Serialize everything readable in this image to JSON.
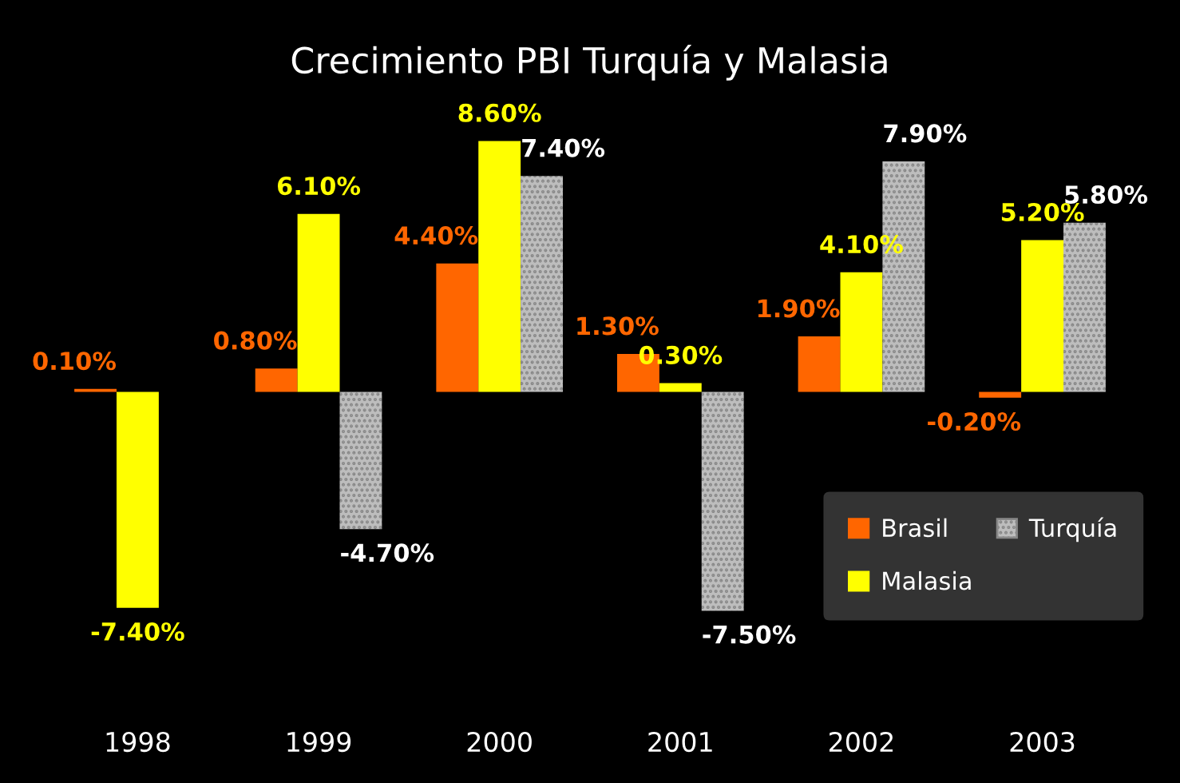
{
  "chart_data": {
    "type": "bar",
    "title": "Crecimiento PBI Turquía y Malasia",
    "categories": [
      "1998",
      "1999",
      "2000",
      "2001",
      "2002",
      "2003"
    ],
    "series": [
      {
        "name": "Brasil",
        "color": "#ff6600",
        "values": [
          0.1,
          0.8,
          4.4,
          1.3,
          1.9,
          -0.2
        ],
        "value_labels": [
          "0.10%",
          "0.80%",
          "4.40%",
          "1.30%",
          "1.90%",
          "-0.20%"
        ]
      },
      {
        "name": "Malasia",
        "color": "#ffff00",
        "values": [
          -7.4,
          6.1,
          8.6,
          0.3,
          4.1,
          5.2
        ],
        "value_labels": [
          "-7.40%",
          "6.10%",
          "8.60%",
          "0.30%",
          "4.10%",
          "5.20%"
        ]
      },
      {
        "name": "Turquía",
        "color": "#bdbdbd",
        "values": [
          null,
          -4.7,
          7.4,
          -7.5,
          7.9,
          5.8
        ],
        "value_labels": [
          null,
          "-4.70%",
          "7.40%",
          "-7.50%",
          "7.90%",
          "5.80%"
        ]
      }
    ],
    "legend": "bottom right",
    "grid": false
  }
}
